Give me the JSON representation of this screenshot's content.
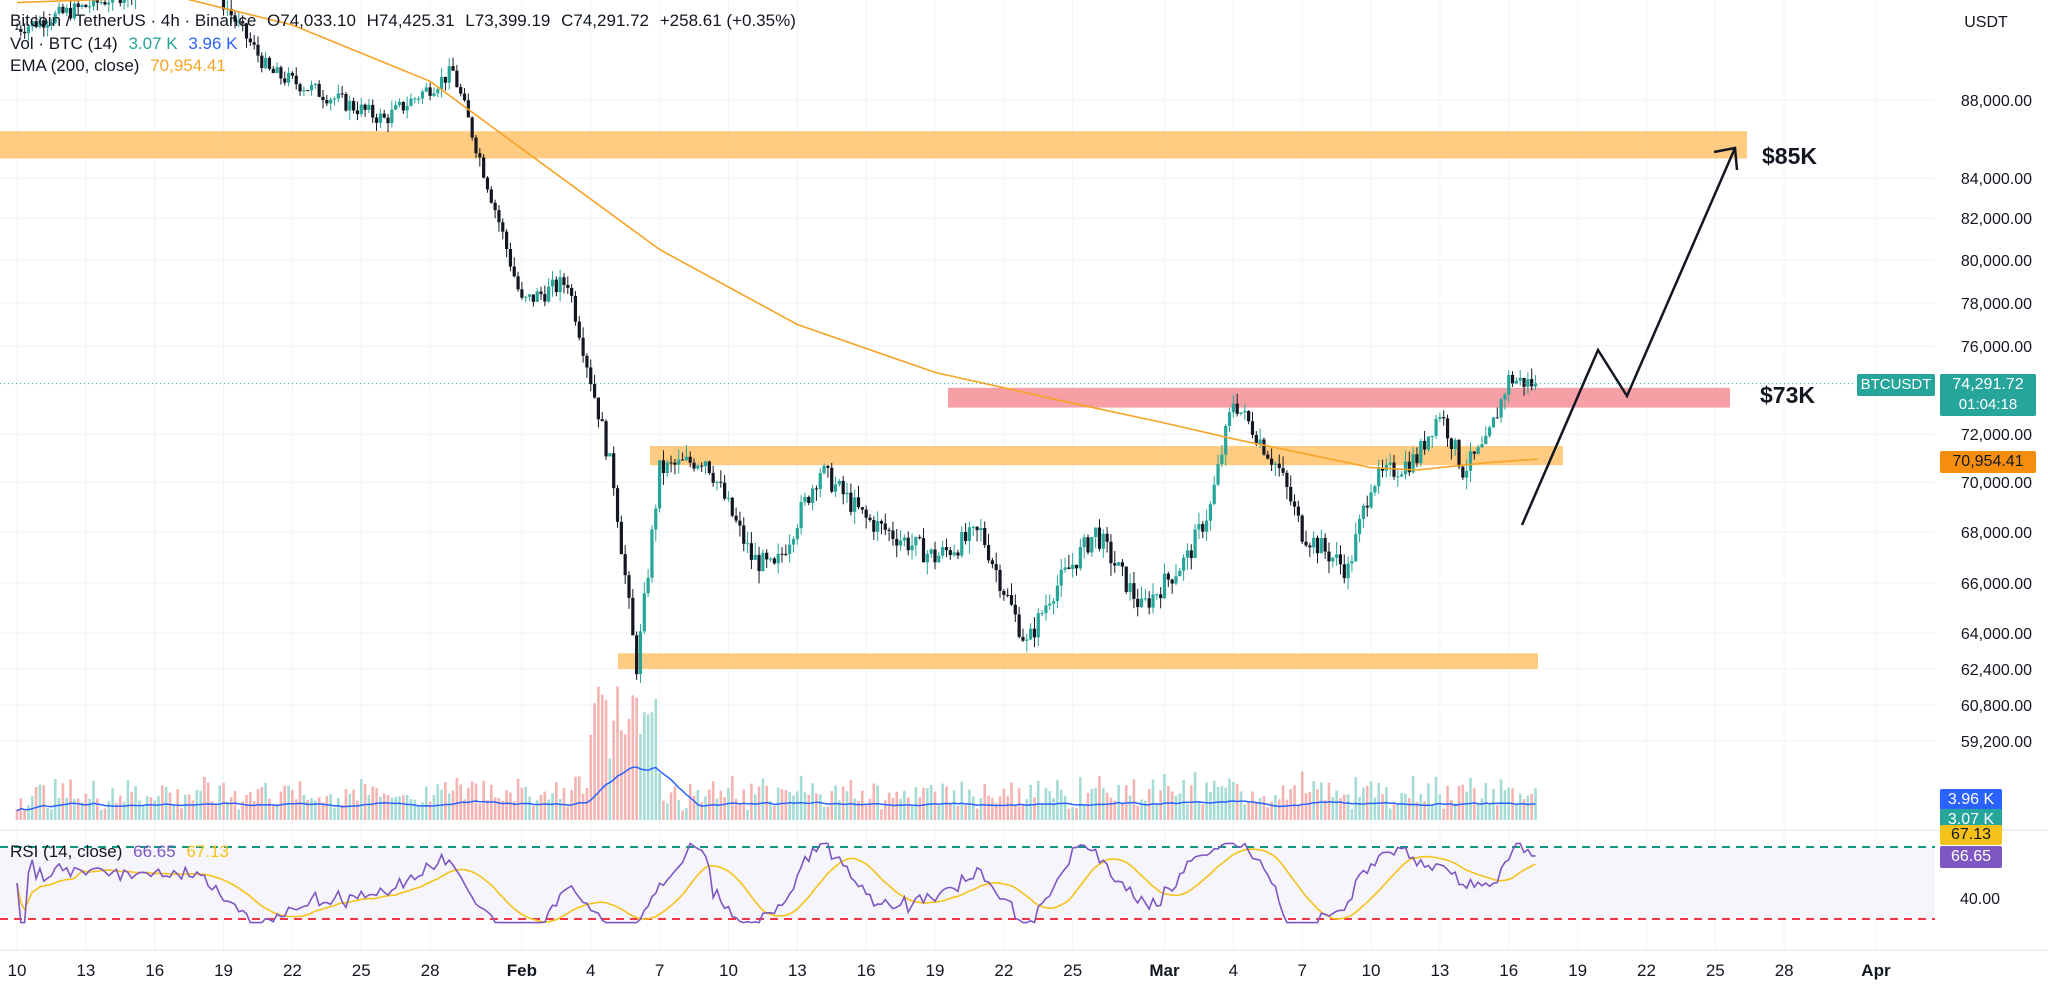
{
  "header": {
    "symbol": "Bitcoin / TetherUS · 4h · Binance",
    "open": "O74,033.10",
    "high": "H74,425.31",
    "low": "L73,399.19",
    "close": "C74,291.72",
    "change": "+258.61 (+0.35%)",
    "vol_label": "Vol · BTC (14)",
    "vol_value1": "3.07 K",
    "vol_value2": "3.96 K",
    "ema_label": "EMA (200, close)",
    "ema_value": "70,954.41",
    "currency_button": "USDT"
  },
  "annotations": {
    "target_label": "$85K",
    "resistance_label": "$73K"
  },
  "price_tags": {
    "symbol_tag": "BTCUSDT",
    "last_price": "74,291.72",
    "countdown": "01:04:18",
    "ema_price": "70,954.41",
    "vol_tag1": "3.96 K",
    "vol_tag2": "3.07 K",
    "rsi_tag1": "67.13",
    "rsi_tag2": "66.65"
  },
  "rsi": {
    "label": "RSI (14, close)",
    "value1": "66.65",
    "value2": "67.13",
    "tick": "40.00"
  },
  "colors": {
    "up": "#26a69a",
    "down": "#ef5350",
    "ema": "#f7a325",
    "zone": "#ffc36b",
    "red_zone": "#f48f95",
    "vol_ma": "#2962ff",
    "rsi_line": "#7e57c2",
    "rsi_ma": "#f4c21b"
  },
  "chart_data": {
    "type": "candlestick",
    "title": "Bitcoin / TetherUS · 4h · Binance",
    "y_ticks": [
      88000,
      84000,
      82000,
      80000,
      78000,
      76000,
      72000,
      70000,
      68000,
      66000,
      64000,
      62400,
      60800,
      59200
    ],
    "y_tick_labels": [
      "88,000.00",
      "84,000.00",
      "82,000.00",
      "80,000.00",
      "78,000.00",
      "76,000.00",
      "72,000.00",
      "70,000.00",
      "68,000.00",
      "66,000.00",
      "64,000.00",
      "62,400.00",
      "60,800.00",
      "59,200.00"
    ],
    "x_labels": [
      "10",
      "13",
      "16",
      "19",
      "22",
      "25",
      "28",
      "Feb",
      "4",
      "7",
      "10",
      "13",
      "16",
      "19",
      "22",
      "25",
      "Mar",
      "4",
      "7",
      "10",
      "13",
      "16",
      "19",
      "22",
      "25",
      "28",
      "Apr"
    ],
    "key_points": [
      {
        "date": "Jan 10",
        "price": 91800
      },
      {
        "date": "Jan 18",
        "price": 95000
      },
      {
        "date": "Jan 21",
        "price": 89500
      },
      {
        "date": "Jan 26",
        "price": 87000
      },
      {
        "date": "Jan 29",
        "price": 89500
      },
      {
        "date": "Feb 1",
        "price": 78000
      },
      {
        "date": "Feb 3",
        "price": 79000
      },
      {
        "date": "Feb 5",
        "price": 70000
      },
      {
        "date": "Feb 6",
        "price": 62500
      },
      {
        "date": "Feb 7",
        "price": 70500
      },
      {
        "date": "Feb 9",
        "price": 71000
      },
      {
        "date": "Feb 11",
        "price": 67000
      },
      {
        "date": "Feb 12",
        "price": 66500
      },
      {
        "date": "Feb 14",
        "price": 70500
      },
      {
        "date": "Feb 16",
        "price": 68500
      },
      {
        "date": "Feb 19",
        "price": 67000
      },
      {
        "date": "Feb 21",
        "price": 68000
      },
      {
        "date": "Feb 23",
        "price": 63500
      },
      {
        "date": "Feb 24",
        "price": 65500
      },
      {
        "date": "Feb 26",
        "price": 68000
      },
      {
        "date": "Feb 28",
        "price": 65000
      },
      {
        "date": "Mar 2",
        "price": 67000
      },
      {
        "date": "Mar 3",
        "price": 69000
      },
      {
        "date": "Mar 4",
        "price": 73500
      },
      {
        "date": "Mar 6",
        "price": 70500
      },
      {
        "date": "Mar 7",
        "price": 68000
      },
      {
        "date": "Mar 9",
        "price": 66500
      },
      {
        "date": "Mar 10",
        "price": 70000
      },
      {
        "date": "Mar 12",
        "price": 71000
      },
      {
        "date": "Mar 13",
        "price": 73000
      },
      {
        "date": "Mar 14",
        "price": 70500
      },
      {
        "date": "Mar 15",
        "price": 71500
      },
      {
        "date": "Mar 16",
        "price": 74500
      },
      {
        "date": "Mar 17",
        "price": 74291.72
      }
    ],
    "ema200": {
      "name": "EMA (200, close)",
      "last": 70954.41
    },
    "zones": [
      {
        "label": "$85K",
        "from": 85000,
        "to": 86400
      },
      {
        "label": "$73K",
        "from": 73200,
        "to": 74100
      },
      {
        "label": "",
        "from": 70700,
        "to": 71500
      },
      {
        "label": "",
        "from": 62400,
        "to": 63100
      }
    ],
    "rsi_levels": [
      70,
      40,
      30
    ],
    "rsi_last": 66.65,
    "rsi_ma_last": 67.13
  }
}
